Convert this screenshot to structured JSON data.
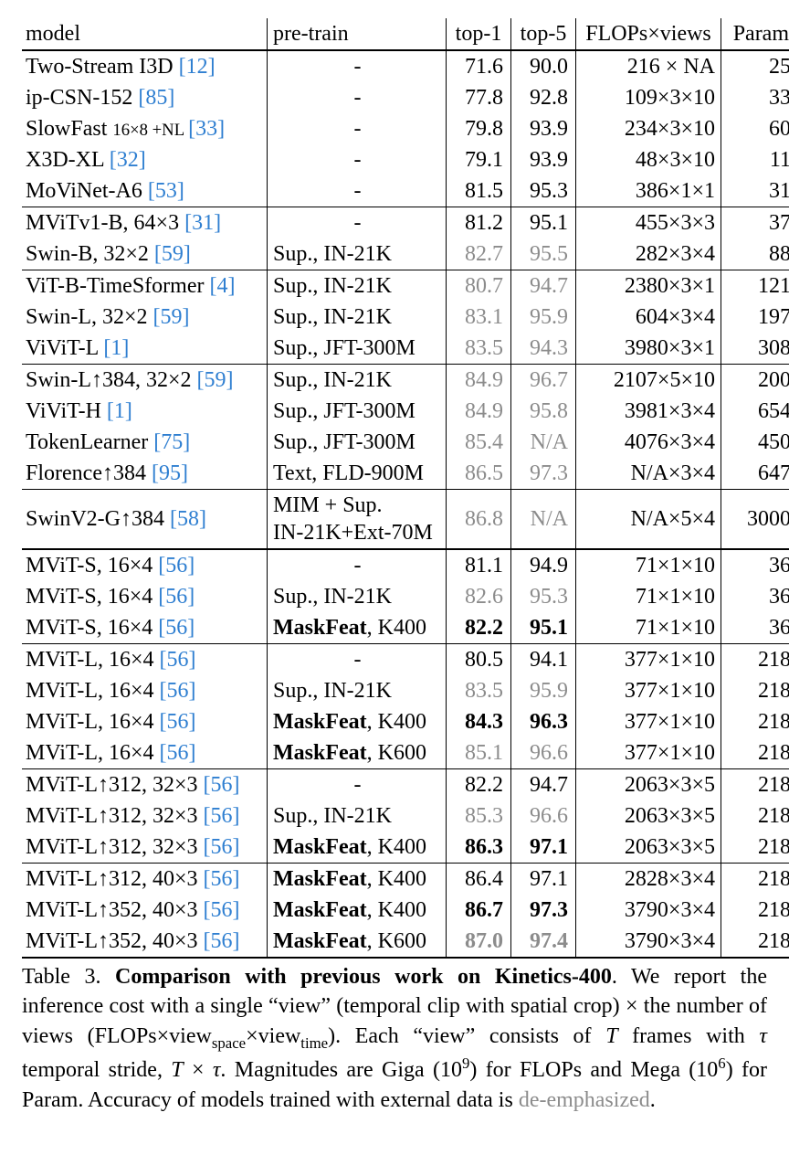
{
  "header": {
    "model": "model",
    "pretrain": "pre-train",
    "top1": "top-1",
    "top5": "top-5",
    "flops": "FLOPs×views",
    "param": "Param"
  },
  "groups": [
    {
      "border": "thick",
      "rows": [
        {
          "model": "Two-Stream I3D ",
          "cite": "[12]",
          "pretrain": "-",
          "pretrain_center": true,
          "top1": "71.6",
          "top5": "90.0",
          "flops": "216 × NA",
          "param": "25"
        },
        {
          "model": "ip-CSN-152 ",
          "cite": "[85]",
          "pretrain": "-",
          "pretrain_center": true,
          "top1": "77.8",
          "top5": "92.8",
          "flops": "109×3×10",
          "param": "33"
        },
        {
          "model": "SlowFast ",
          "model_small": "16×8 +NL ",
          "cite": "[33]",
          "pretrain": "-",
          "pretrain_center": true,
          "top1": "79.8",
          "top5": "93.9",
          "flops": "234×3×10",
          "param": "60"
        },
        {
          "model": "X3D-XL ",
          "cite": "[32]",
          "pretrain": "-",
          "pretrain_center": true,
          "top1": "79.1",
          "top5": "93.9",
          "flops": "48×3×10",
          "param": "11"
        },
        {
          "model": "MoViNet-A6 ",
          "cite": "[53]",
          "pretrain": "-",
          "pretrain_center": true,
          "top1": "81.5",
          "top5": "95.3",
          "flops": "386×1×1",
          "param": "31"
        }
      ]
    },
    {
      "border": "thin",
      "rows": [
        {
          "model": "MViTv1-B, 64×3 ",
          "cite": "[31]",
          "pretrain": "-",
          "pretrain_center": true,
          "top1": "81.2",
          "top5": "95.1",
          "flops": "455×3×3",
          "param": "37"
        },
        {
          "model": "Swin-B, 32×2 ",
          "cite": "[59]",
          "pretrain": "Sup., IN-21K",
          "top1": "82.7",
          "top5": "95.5",
          "deemph": true,
          "flops": "282×3×4",
          "param": "88"
        }
      ]
    },
    {
      "border": "thin",
      "rows": [
        {
          "model": "ViT-B-TimeSformer ",
          "cite": "[4]",
          "pretrain": "Sup., IN-21K",
          "top1": "80.7",
          "top5": "94.7",
          "deemph": true,
          "flops": "2380×3×1",
          "param": "121"
        },
        {
          "model": "Swin-L, 32×2 ",
          "cite": "[59]",
          "pretrain": "Sup., IN-21K",
          "top1": "83.1",
          "top5": "95.9",
          "deemph": true,
          "flops": "604×3×4",
          "param": "197"
        },
        {
          "model": "ViViT-L ",
          "cite": "[1]",
          "pretrain": "Sup., JFT-300M",
          "top1": "83.5",
          "top5": "94.3",
          "deemph": true,
          "flops": "3980×3×1",
          "param": "308"
        }
      ]
    },
    {
      "border": "thin",
      "rows": [
        {
          "model": "Swin-L↑384, 32×2 ",
          "cite": "[59]",
          "pretrain": "Sup., IN-21K",
          "top1": "84.9",
          "top5": "96.7",
          "deemph": true,
          "flops": "2107×5×10",
          "param": "200"
        },
        {
          "model": "ViViT-H ",
          "cite": "[1]",
          "pretrain": "Sup., JFT-300M",
          "top1": "84.9",
          "top5": "95.8",
          "deemph": true,
          "flops": "3981×3×4",
          "param": "654"
        },
        {
          "model": "TokenLearner ",
          "cite": "[75]",
          "pretrain": "Sup., JFT-300M",
          "top1": "85.4",
          "top5": "N/A",
          "deemph": true,
          "flops": "4076×3×4",
          "param": "450"
        },
        {
          "model": "Florence↑384 ",
          "cite": "[95]",
          "pretrain": "Text, FLD-900M",
          "top1": "86.5",
          "top5": "97.3",
          "deemph": true,
          "flops": "N/A×3×4",
          "param": "647"
        }
      ]
    },
    {
      "border": "thin",
      "rows": [
        {
          "model": "SwinV2-G↑384 ",
          "cite": "[58]",
          "pretrain": "MIM + Sup.\nIN-21K+Ext-70M",
          "top1": "86.8",
          "top5": "N/A",
          "deemph": true,
          "flops": "N/A×5×4",
          "param": "3000",
          "multiline": true
        }
      ]
    },
    {
      "border": "thick",
      "rows": [
        {
          "model": "MViT-S, 16×4 ",
          "cite": "[56]",
          "pretrain": "-",
          "pretrain_center": true,
          "top1": "81.1",
          "top5": "94.9",
          "flops": "71×1×10",
          "param": "36"
        },
        {
          "model": "MViT-S, 16×4 ",
          "cite": "[56]",
          "pretrain": "Sup., IN-21K",
          "top1": "82.6",
          "top5": "95.3",
          "deemph": true,
          "flops": "71×1×10",
          "param": "36"
        },
        {
          "model": "MViT-S, 16×4 ",
          "cite": "[56]",
          "pretrain_bold": "MaskFeat",
          "pretrain_rest": ", K400",
          "top1": "82.2",
          "top5": "95.1",
          "bold": true,
          "flops": "71×1×10",
          "param": "36"
        }
      ]
    },
    {
      "border": "thin",
      "rows": [
        {
          "model": "MViT-L, 16×4 ",
          "cite": "[56]",
          "pretrain": "-",
          "pretrain_center": true,
          "top1": "80.5",
          "top5": "94.1",
          "flops": "377×1×10",
          "param": "218"
        },
        {
          "model": "MViT-L, 16×4 ",
          "cite": "[56]",
          "pretrain": "Sup., IN-21K",
          "top1": "83.5",
          "top5": "95.9",
          "deemph": true,
          "flops": "377×1×10",
          "param": "218"
        },
        {
          "model": "MViT-L, 16×4 ",
          "cite": "[56]",
          "pretrain_bold": "MaskFeat",
          "pretrain_rest": ", K400",
          "top1": "84.3",
          "top5": "96.3",
          "bold": true,
          "flops": "377×1×10",
          "param": "218"
        },
        {
          "model": "MViT-L, 16×4 ",
          "cite": "[56]",
          "pretrain_bold": "MaskFeat",
          "pretrain_rest": ", K600",
          "top1": "85.1",
          "top5": "96.6",
          "deemph": true,
          "flops": "377×1×10",
          "param": "218"
        }
      ]
    },
    {
      "border": "thin",
      "rows": [
        {
          "model": "MViT-L↑312, 32×3 ",
          "cite": "[56]",
          "pretrain": "-",
          "pretrain_center": true,
          "top1": "82.2",
          "top5": "94.7",
          "flops": "2063×3×5",
          "param": "218"
        },
        {
          "model": "MViT-L↑312, 32×3 ",
          "cite": "[56]",
          "pretrain": "Sup., IN-21K",
          "top1": "85.3",
          "top5": "96.6",
          "deemph": true,
          "flops": "2063×3×5",
          "param": "218"
        },
        {
          "model": "MViT-L↑312, 32×3 ",
          "cite": "[56]",
          "pretrain_bold": "MaskFeat",
          "pretrain_rest": ", K400",
          "top1": "86.3",
          "top5": "97.1",
          "bold": true,
          "flops": "2063×3×5",
          "param": "218"
        }
      ]
    },
    {
      "border": "thin",
      "bottom": "thick",
      "rows": [
        {
          "model": "MViT-L↑312, 40×3 ",
          "cite": "[56]",
          "pretrain_bold": "MaskFeat",
          "pretrain_rest": ", K400",
          "top1": "86.4",
          "top5": "97.1",
          "flops": "2828×3×4",
          "param": "218"
        },
        {
          "model": "MViT-L↑352, 40×3 ",
          "cite": "[56]",
          "pretrain_bold": "MaskFeat",
          "pretrain_rest": ", K400",
          "top1": "86.7",
          "top5": "97.3",
          "bold": true,
          "flops": "3790×3×4",
          "param": "218"
        },
        {
          "model": "MViT-L↑352, 40×3 ",
          "cite": "[56]",
          "pretrain_bold": "MaskFeat",
          "pretrain_rest": ", K600",
          "top1": "87.0",
          "top5": "97.4",
          "deemph": true,
          "bold": true,
          "flops": "3790×3×4",
          "param": "218"
        }
      ]
    }
  ],
  "caption": {
    "label": "Table 3.",
    "title": "Comparison with previous work on Kinetics-400",
    "body1": ". We report the inference cost with a single “view” (temporal clip with spatial crop) × the number of views (FLOPs×view",
    "sub1": "space",
    "body2": "×view",
    "sub2": "time",
    "body3": "). Each “view” consists of ",
    "T": "T",
    "body4": " frames with ",
    "tau": "τ",
    "body5": " temporal stride, ",
    "T2": "T",
    "body6": " × ",
    "tau2": "τ",
    "body7": ". Magnitudes are Giga (10",
    "sup1": "9",
    "body8": ") for FLOPs and Mega (10",
    "sup2": "6",
    "body9": ") for Param. Accuracy of models trained with external data is ",
    "deemph": "de-emphasized",
    "body10": "."
  }
}
